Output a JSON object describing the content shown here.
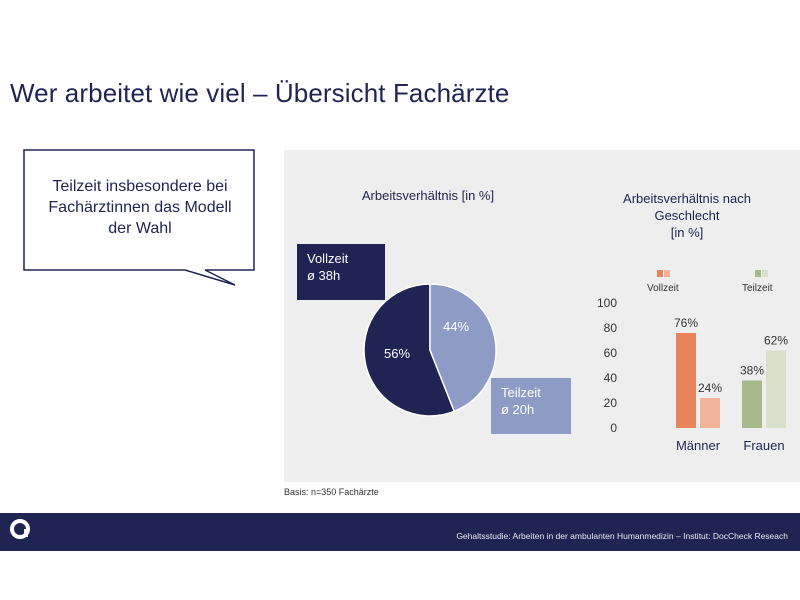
{
  "slide": {
    "title": "Wer arbeitet wie viel – Übersicht Fachärzte",
    "callout": [
      "Teilzeit insbesondere bei",
      "Fachärztinnen das Modell",
      "der Wahl"
    ],
    "basis": "Basis: n=350 Fachärzte",
    "footer_text": "Gehaltsstudie: Arbeiten in der ambulanten Humanmedizin – Institut: DocCheck Reseach",
    "logo_letter": "a"
  },
  "colors": {
    "navy": "#1f2452",
    "periwinkle": "#8e9cc5",
    "orange": "#e8845c",
    "orange_light": "#f2b39b",
    "olive": "#a6b98a",
    "olive_light": "#d8e0c9",
    "panel": "#eeeeee"
  },
  "chart_data": [
    {
      "type": "pie",
      "title": "Arbeitsverhältnis [in %]",
      "slices": [
        {
          "name": "Vollzeit",
          "value": 56,
          "label": "56%",
          "box": [
            "Vollzeit",
            "ø 38h"
          ]
        },
        {
          "name": "Teilzeit",
          "value": 44,
          "label": "44%",
          "box": [
            "Teilzeit",
            "ø 20h"
          ]
        }
      ]
    },
    {
      "type": "bar",
      "title": [
        "Arbeitsverhältnis nach",
        "Geschlecht",
        "[in %]"
      ],
      "categories": [
        "Männer",
        "Frauen"
      ],
      "series": [
        {
          "name": "Vollzeit",
          "values": [
            76,
            38
          ],
          "labels": [
            "76%",
            "38%"
          ]
        },
        {
          "name": "Teilzeit",
          "values": [
            24,
            62
          ],
          "labels": [
            "24%",
            "62%"
          ]
        }
      ],
      "ylim": [
        0,
        100
      ],
      "yticks": [
        0,
        20,
        40,
        60,
        80,
        100
      ],
      "legend": "top"
    }
  ]
}
